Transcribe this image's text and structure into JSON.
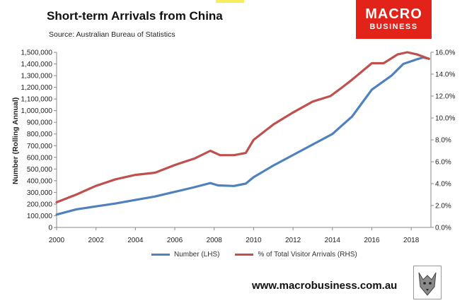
{
  "header": {
    "title": "Short-term Arrivals from China",
    "subtitle": "Source: Australian Bureau of Statistics"
  },
  "logo": {
    "line1": "MACRO",
    "line2": "BUSINESS",
    "color": "#e2231a"
  },
  "footer": {
    "website": "www.macrobusiness.com.au"
  },
  "chart_data": {
    "type": "line",
    "ylabel": "Number (Rolling Annual)",
    "ylim": [
      0,
      1500000
    ],
    "y2lim": [
      0,
      16
    ],
    "yticks": [
      "0",
      "100,000",
      "200,000",
      "300,000",
      "400,000",
      "500,000",
      "600,000",
      "700,000",
      "800,000",
      "900,000",
      "1,000,000",
      "1,100,000",
      "1,200,000",
      "1,300,000",
      "1,400,000",
      "1,500,000"
    ],
    "y2ticks": [
      "0.0%",
      "2.0%",
      "4.0%",
      "6.0%",
      "8.0%",
      "10.0%",
      "12.0%",
      "14.0%",
      "16.0%"
    ],
    "xlim": [
      2000,
      2019
    ],
    "xticks": [
      "2000",
      "2002",
      "2004",
      "2006",
      "2008",
      "2010",
      "2012",
      "2014",
      "2016",
      "2018"
    ],
    "grid": false,
    "legend_position": "bottom",
    "series": [
      {
        "name": "Number (LHS)",
        "axis": "left",
        "color": "#4f81bd",
        "x": [
          2000,
          2001,
          2002,
          2003,
          2004,
          2005,
          2006,
          2007,
          2007.8,
          2008.2,
          2009,
          2009.6,
          2010,
          2011,
          2012,
          2013,
          2014,
          2015,
          2016,
          2017,
          2017.6,
          2018.3,
          2018.6,
          2018.9
        ],
        "y": [
          110000,
          155000,
          180000,
          205000,
          235000,
          265000,
          305000,
          345000,
          380000,
          360000,
          355000,
          375000,
          430000,
          530000,
          620000,
          710000,
          800000,
          950000,
          1180000,
          1300000,
          1400000,
          1440000,
          1455000,
          1445000
        ]
      },
      {
        "name": "% of Total Visitor Arrivals (RHS)",
        "axis": "right",
        "color": "#c0504d",
        "x": [
          2000,
          2001,
          2002,
          2003,
          2004,
          2005,
          2006,
          2007,
          2007.8,
          2008.3,
          2009,
          2009.6,
          2010,
          2011,
          2012,
          2013,
          2013.9,
          2014.5,
          2015,
          2016,
          2016.6,
          2017.3,
          2017.8,
          2018.3,
          2018.9
        ],
        "y": [
          2.3,
          3.0,
          3.8,
          4.4,
          4.8,
          5.0,
          5.7,
          6.3,
          7.0,
          6.6,
          6.6,
          6.8,
          8.0,
          9.4,
          10.5,
          11.5,
          12.0,
          12.8,
          13.5,
          15.0,
          15.0,
          15.8,
          16.0,
          15.8,
          15.4
        ]
      }
    ]
  }
}
